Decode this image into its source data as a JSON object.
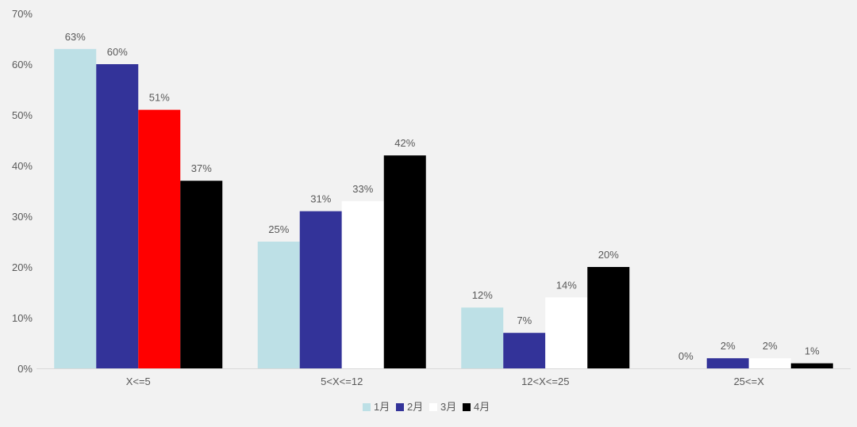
{
  "chart_data": {
    "type": "bar",
    "title": "",
    "xlabel": "",
    "ylabel": "",
    "ylim": [
      0,
      70
    ],
    "yticks": [
      "0%",
      "10%",
      "20%",
      "30%",
      "40%",
      "50%",
      "60%",
      "70%"
    ],
    "grid": false,
    "legend_position": "bottom",
    "categories": [
      "X<=5",
      "5<X<=12",
      "12<X<=25",
      "25<=X"
    ],
    "series": [
      {
        "name": "1月",
        "color": "#bde0e6",
        "values": [
          63,
          25,
          12,
          0
        ],
        "labels": [
          "63%",
          "25%",
          "12%",
          "0%"
        ]
      },
      {
        "name": "2月",
        "color": "#333399",
        "values": [
          60,
          31,
          7,
          2
        ],
        "labels": [
          "60%",
          "31%",
          "7%",
          "2%"
        ]
      },
      {
        "name": "3月",
        "color": "#ffffff",
        "values": [
          51,
          33,
          14,
          2
        ],
        "labels": [
          "51%",
          "33%",
          "14%",
          "2%"
        ],
        "highlight": {
          "index": 0,
          "color": "#ff0000"
        }
      },
      {
        "name": "4月",
        "color": "#000000",
        "values": [
          37,
          42,
          20,
          1
        ],
        "labels": [
          "37%",
          "42%",
          "20%",
          "1%"
        ]
      }
    ]
  }
}
